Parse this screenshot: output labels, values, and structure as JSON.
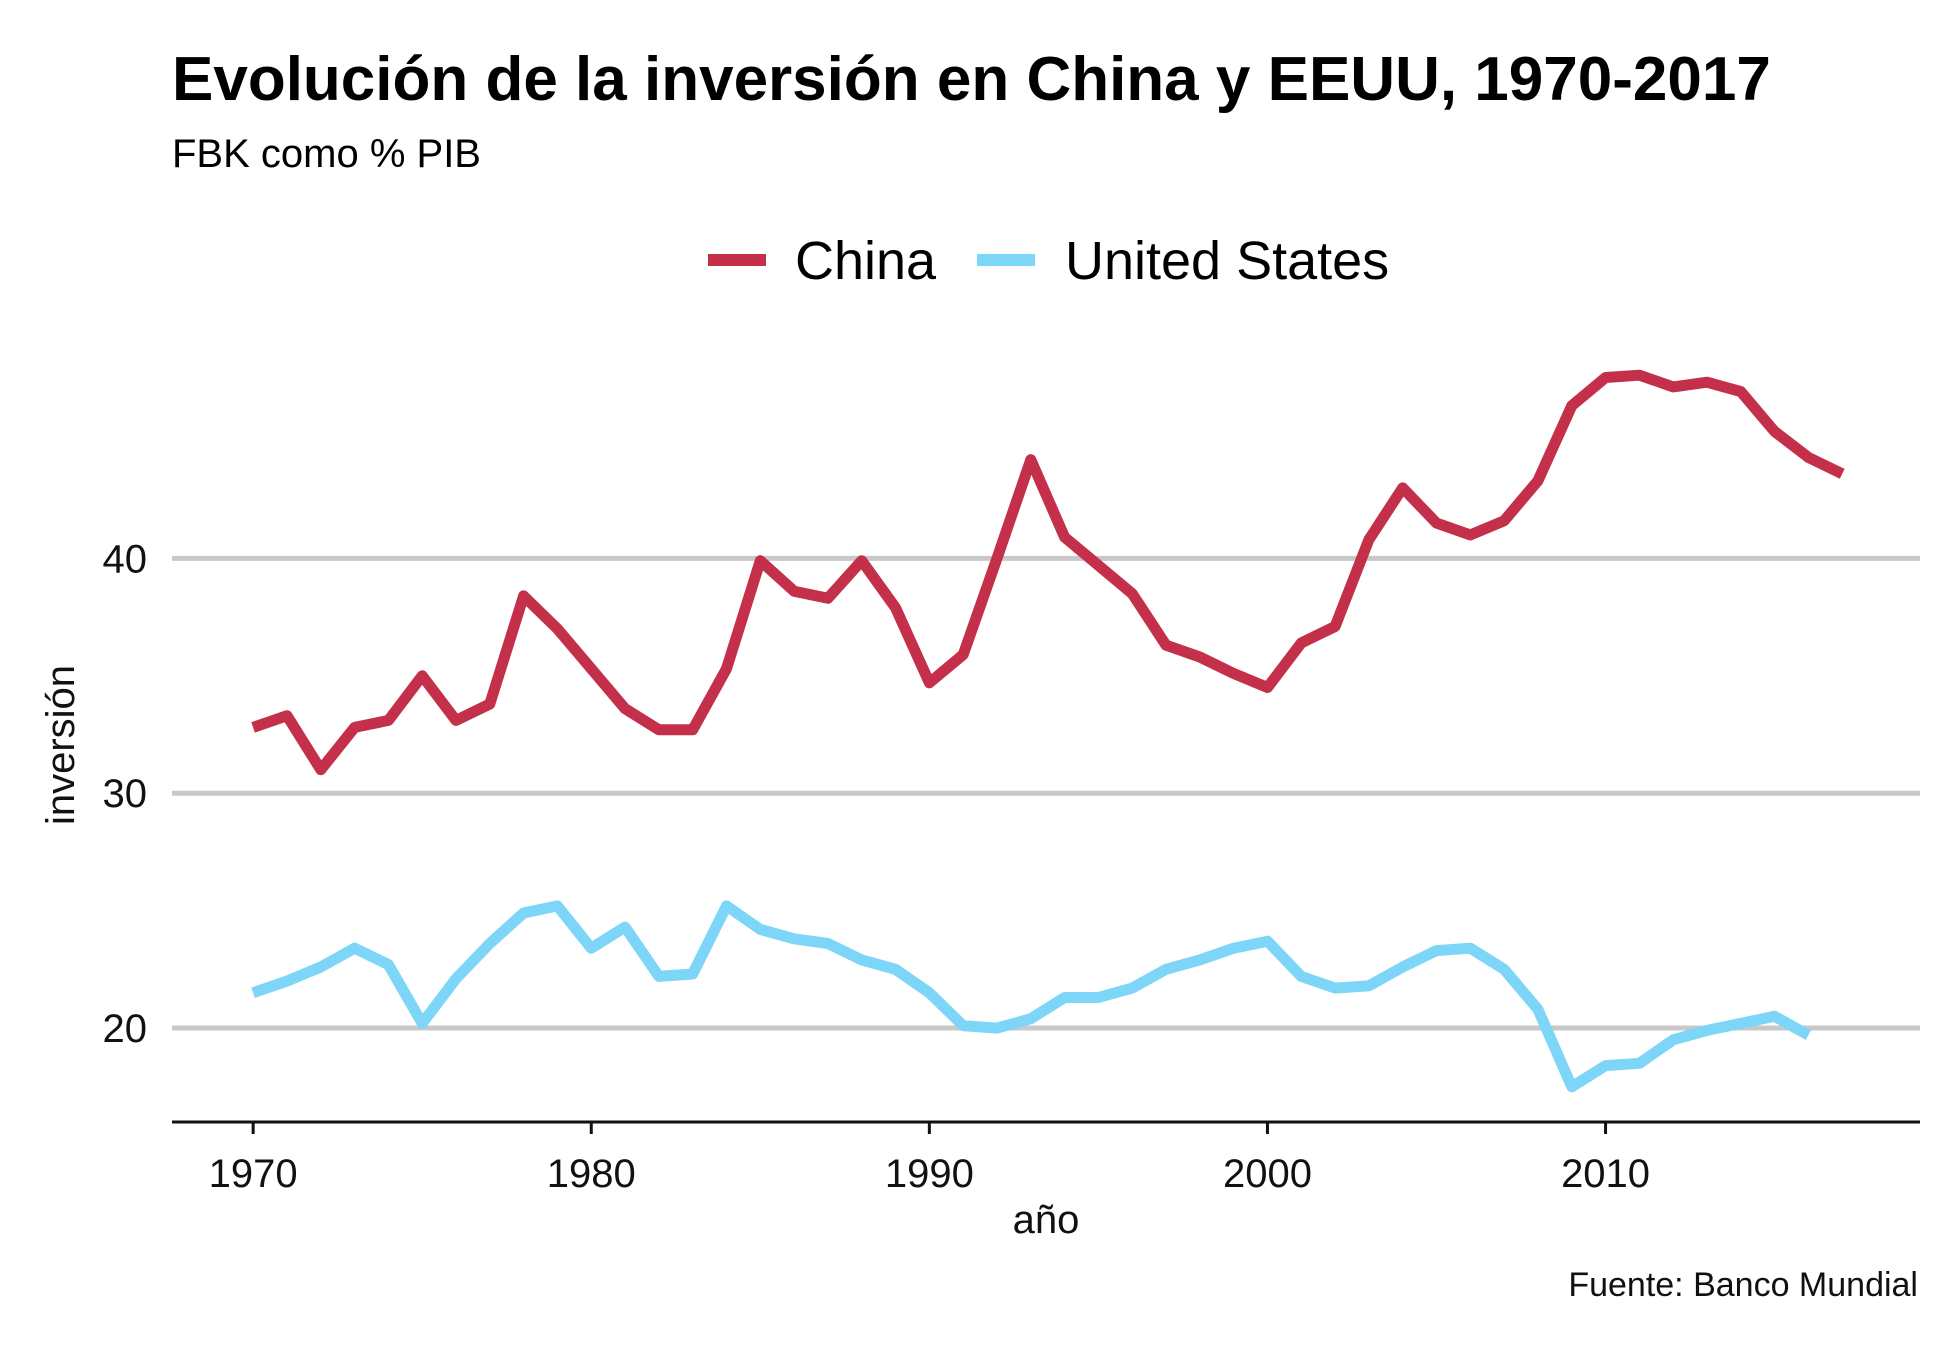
{
  "chart_data": {
    "type": "line",
    "title": "Evolución de la inversión en China y EEUU, 1970-2017",
    "subtitle": "FBK como % PIB",
    "xlabel": "año",
    "ylabel": "inversión",
    "caption": "Fuente: Banco Mundial",
    "legend_position": "top",
    "grid": "horizontal major",
    "xlim": [
      1967.6,
      2019.3
    ],
    "ylim": [
      16,
      51
    ],
    "x_ticks": [
      1970,
      1980,
      1990,
      2000,
      2010
    ],
    "y_ticks": [
      20,
      30,
      40
    ],
    "x_tick_labels": [
      "1970",
      "1980",
      "1990",
      "2000",
      "2010"
    ],
    "y_tick_labels": [
      "20",
      "30",
      "40"
    ],
    "series": [
      {
        "name": "China",
        "color": "#c4304a",
        "x": [
          1970,
          1971,
          1972,
          1973,
          1974,
          1975,
          1976,
          1977,
          1978,
          1979,
          1980,
          1981,
          1982,
          1983,
          1984,
          1985,
          1986,
          1987,
          1988,
          1989,
          1990,
          1991,
          1992,
          1993,
          1994,
          1995,
          1996,
          1997,
          1998,
          1999,
          2000,
          2001,
          2002,
          2003,
          2004,
          2005,
          2006,
          2007,
          2008,
          2009,
          2010,
          2011,
          2012,
          2013,
          2014,
          2015,
          2016,
          2017
        ],
        "values": [
          32.8,
          33.3,
          31.0,
          32.8,
          33.1,
          35.0,
          33.1,
          33.8,
          38.4,
          37.0,
          35.3,
          33.6,
          32.7,
          32.7,
          35.3,
          39.9,
          38.6,
          38.3,
          39.9,
          37.9,
          34.7,
          35.9,
          40.0,
          44.2,
          40.9,
          39.7,
          38.5,
          36.3,
          35.8,
          35.1,
          34.5,
          36.4,
          37.1,
          40.8,
          43.0,
          41.5,
          41.0,
          41.6,
          43.3,
          46.5,
          47.7,
          47.8,
          47.3,
          47.5,
          47.1,
          45.4,
          44.3,
          43.6
        ]
      },
      {
        "name": "United States",
        "color": "#7dd5f7",
        "x": [
          1970,
          1971,
          1972,
          1973,
          1974,
          1975,
          1976,
          1977,
          1978,
          1979,
          1980,
          1981,
          1982,
          1983,
          1984,
          1985,
          1986,
          1987,
          1988,
          1989,
          1990,
          1991,
          1992,
          1993,
          1994,
          1995,
          1996,
          1997,
          1998,
          1999,
          2000,
          2001,
          2002,
          2003,
          2004,
          2005,
          2006,
          2007,
          2008,
          2009,
          2010,
          2011,
          2012,
          2013,
          2014,
          2015,
          2016
        ],
        "values": [
          21.5,
          22.0,
          22.6,
          23.4,
          22.7,
          20.2,
          22.1,
          23.6,
          24.9,
          25.2,
          23.4,
          24.3,
          22.2,
          22.3,
          25.2,
          24.2,
          23.8,
          23.6,
          22.9,
          22.5,
          21.5,
          20.1,
          20.0,
          20.4,
          21.3,
          21.3,
          21.7,
          22.5,
          22.9,
          23.4,
          23.7,
          22.2,
          21.7,
          21.8,
          22.6,
          23.3,
          23.4,
          22.5,
          20.8,
          17.5,
          18.4,
          18.5,
          19.5,
          19.9,
          20.2,
          20.5,
          19.7
        ]
      }
    ]
  }
}
